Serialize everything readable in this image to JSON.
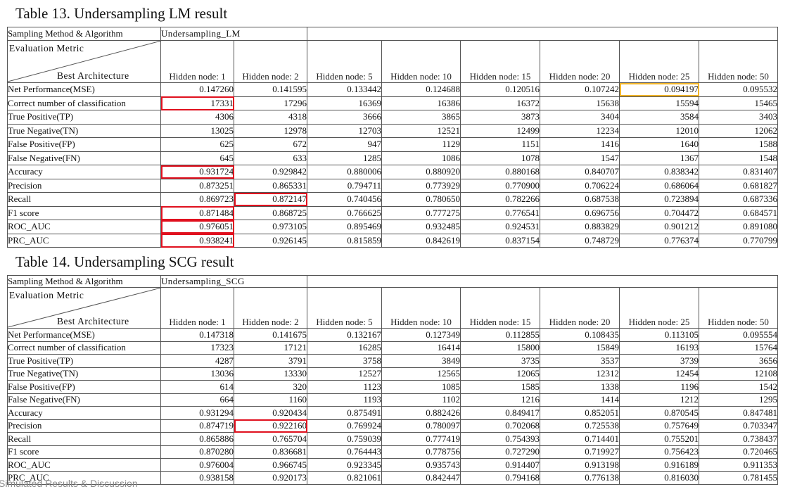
{
  "tables": [
    {
      "caption": "Table 13. Undersampling LM result",
      "method_label": "Sampling Method & Algorithm",
      "algorithm": "Undersampling_LM",
      "metric_label": "Evaluation Metric",
      "arch_label": "Best Architecture",
      "columns": [
        "Hidden node: 1",
        "Hidden node: 2",
        "Hidden node: 5",
        "Hidden node: 10",
        "Hidden node: 15",
        "Hidden node: 20",
        "Hidden node: 25",
        "Hidden node: 50"
      ],
      "rows": [
        {
          "label": "Net Performance(MSE)",
          "values": [
            "0.147260",
            "0.141595",
            "0.133442",
            "0.124688",
            "0.120516",
            "0.107242",
            "0.094197",
            "0.095532"
          ]
        },
        {
          "label": "Correct number of classification",
          "values": [
            "17331",
            "17296",
            "16369",
            "16386",
            "16372",
            "15638",
            "15594",
            "15465"
          ]
        },
        {
          "label": "True Positive(TP)",
          "values": [
            "4306",
            "4318",
            "3666",
            "3865",
            "3873",
            "3404",
            "3584",
            "3403"
          ]
        },
        {
          "label": "True Negative(TN)",
          "values": [
            "13025",
            "12978",
            "12703",
            "12521",
            "12499",
            "12234",
            "12010",
            "12062"
          ]
        },
        {
          "label": "False Positive(FP)",
          "values": [
            "625",
            "672",
            "947",
            "1129",
            "1151",
            "1416",
            "1640",
            "1588"
          ]
        },
        {
          "label": "False Negative(FN)",
          "values": [
            "645",
            "633",
            "1285",
            "1086",
            "1078",
            "1547",
            "1367",
            "1548"
          ]
        },
        {
          "label": "Accuracy",
          "values": [
            "0.931724",
            "0.929842",
            "0.880006",
            "0.880920",
            "0.880168",
            "0.840707",
            "0.838342",
            "0.831407"
          ]
        },
        {
          "label": "Precision",
          "values": [
            "0.873251",
            "0.865331",
            "0.794711",
            "0.773929",
            "0.770900",
            "0.706224",
            "0.686064",
            "0.681827"
          ]
        },
        {
          "label": "Recall",
          "values": [
            "0.869723",
            "0.872147",
            "0.740456",
            "0.780650",
            "0.782266",
            "0.687538",
            "0.723894",
            "0.687336"
          ]
        },
        {
          "label": "F1 score",
          "values": [
            "0.871484",
            "0.868725",
            "0.766625",
            "0.777275",
            "0.776541",
            "0.696756",
            "0.704472",
            "0.684571"
          ]
        },
        {
          "label": "ROC_AUC",
          "values": [
            "0.976051",
            "0.973105",
            "0.895469",
            "0.932485",
            "0.924531",
            "0.883829",
            "0.901212",
            "0.891080"
          ]
        },
        {
          "label": "PRC_AUC",
          "values": [
            "0.938241",
            "0.926145",
            "0.815859",
            "0.842619",
            "0.837154",
            "0.748729",
            "0.776374",
            "0.770799"
          ]
        }
      ],
      "highlights": [
        {
          "row": 0,
          "col": 6,
          "color": "#f0b429"
        },
        {
          "row": 1,
          "col": 0,
          "color": "#e0101e"
        },
        {
          "row": 6,
          "col": 0,
          "color": "#e0101e"
        },
        {
          "row": 8,
          "col": 1,
          "color": "#e0101e"
        },
        {
          "row": 9,
          "col": 0,
          "color": "#e0101e"
        },
        {
          "row": 10,
          "col": 0,
          "color": "#e0101e"
        },
        {
          "row": 11,
          "col": 0,
          "color": "#e0101e"
        }
      ]
    },
    {
      "caption": "Table 14. Undersampling SCG result",
      "method_label": "Sampling Method & Algorithm",
      "algorithm": "Undersampling_SCG",
      "metric_label": "Evaluation Metric",
      "arch_label": "Best Architecture",
      "columns": [
        "Hidden node: 1",
        "Hidden node: 2",
        "Hidden node: 5",
        "Hidden node: 10",
        "Hidden node: 15",
        "Hidden node: 20",
        "Hidden node: 25",
        "Hidden node: 50"
      ],
      "rows": [
        {
          "label": "Net Performance(MSE)",
          "values": [
            "0.147318",
            "0.141675",
            "0.132167",
            "0.127349",
            "0.112855",
            "0.108435",
            "0.113105",
            "0.095554"
          ]
        },
        {
          "label": "Correct number of classification",
          "values": [
            "17323",
            "17121",
            "16285",
            "16414",
            "15800",
            "15849",
            "16193",
            "15764"
          ]
        },
        {
          "label": "True Positive(TP)",
          "values": [
            "4287",
            "3791",
            "3758",
            "3849",
            "3735",
            "3537",
            "3739",
            "3656"
          ]
        },
        {
          "label": "True Negative(TN)",
          "values": [
            "13036",
            "13330",
            "12527",
            "12565",
            "12065",
            "12312",
            "12454",
            "12108"
          ]
        },
        {
          "label": "False Positive(FP)",
          "values": [
            "614",
            "320",
            "1123",
            "1085",
            "1585",
            "1338",
            "1196",
            "1542"
          ]
        },
        {
          "label": "False Negative(FN)",
          "values": [
            "664",
            "1160",
            "1193",
            "1102",
            "1216",
            "1414",
            "1212",
            "1295"
          ]
        },
        {
          "label": "Accuracy",
          "values": [
            "0.931294",
            "0.920434",
            "0.875491",
            "0.882426",
            "0.849417",
            "0.852051",
            "0.870545",
            "0.847481"
          ]
        },
        {
          "label": "Precision",
          "values": [
            "0.874719",
            "0.922160",
            "0.769924",
            "0.780097",
            "0.702068",
            "0.725538",
            "0.757649",
            "0.703347"
          ]
        },
        {
          "label": "Recall",
          "values": [
            "0.865886",
            "0.765704",
            "0.759039",
            "0.777419",
            "0.754393",
            "0.714401",
            "0.755201",
            "0.738437"
          ]
        },
        {
          "label": "F1 score",
          "values": [
            "0.870280",
            "0.836681",
            "0.764443",
            "0.778756",
            "0.727290",
            "0.719927",
            "0.756423",
            "0.720465"
          ]
        },
        {
          "label": "ROC_AUC",
          "values": [
            "0.976004",
            "0.966745",
            "0.923345",
            "0.935743",
            "0.914407",
            "0.913198",
            "0.916189",
            "0.911353"
          ]
        },
        {
          "label": "PRC_AUC",
          "values": [
            "0.938158",
            "0.920173",
            "0.821061",
            "0.842447",
            "0.794168",
            "0.776138",
            "0.816030",
            "0.781455"
          ]
        }
      ],
      "highlights": [
        {
          "row": 7,
          "col": 1,
          "color": "#e0101e"
        }
      ]
    }
  ],
  "footer_text": "Simulated Results & Discussion"
}
